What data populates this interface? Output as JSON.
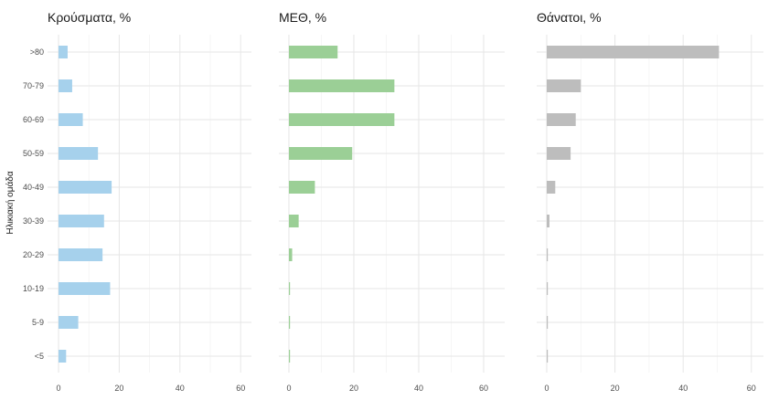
{
  "chart_data": {
    "type": "bar",
    "orientation": "horizontal",
    "ylabel": "Ηλικιακή ομάδα",
    "categories": [
      "<5",
      "5-9",
      "10-19",
      "20-29",
      "30-39",
      "40-49",
      "50-59",
      "60-69",
      "70-79",
      ">80"
    ],
    "xlim": [
      0,
      65
    ],
    "xticks": [
      0,
      20,
      40,
      60
    ],
    "grid": true,
    "legend": "none",
    "panels": [
      {
        "title": "Κρούσματα, %",
        "color": "#a6d1ec",
        "values": [
          2.5,
          6.5,
          17,
          14.5,
          15,
          17.5,
          13,
          8,
          4.5,
          3
        ]
      },
      {
        "title": "ΜΕΘ, %",
        "color": "#9bcf96",
        "values": [
          0.1,
          0.1,
          0.3,
          1,
          3,
          8,
          19.5,
          32.5,
          32.5,
          15
        ]
      },
      {
        "title": "Θάνατοι, %",
        "color": "#bdbdbd",
        "values": [
          0.05,
          0.05,
          0.1,
          0.2,
          0.8,
          2.5,
          7,
          8.5,
          10,
          50.5
        ]
      }
    ]
  }
}
